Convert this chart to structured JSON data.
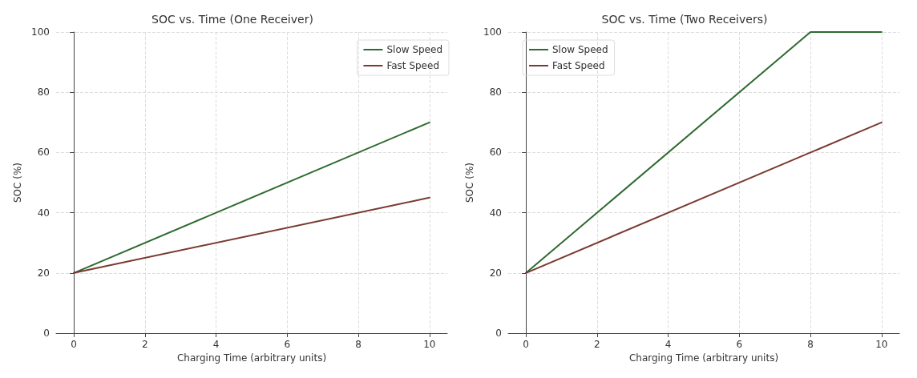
{
  "chart_data": [
    {
      "type": "line",
      "title": "SOC vs. Time (One Receiver)",
      "xlabel": "Charging Time (arbitrary units)",
      "ylabel": "SOC (%)",
      "x": [
        0,
        10
      ],
      "xlim": [
        -0.5,
        10.5
      ],
      "xticks": [
        0,
        2,
        4,
        6,
        8,
        10
      ],
      "ylim": [
        0,
        100
      ],
      "yticks": [
        0,
        20,
        40,
        60,
        80,
        100
      ],
      "grid": true,
      "legend": "top right",
      "marker": "none",
      "line_style": "solid",
      "series": [
        {
          "name": "Slow Speed",
          "color": "#2e6b30",
          "values": [
            20,
            70
          ]
        },
        {
          "name": "Fast Speed",
          "color": "#7a3a30",
          "values": [
            20,
            45
          ]
        }
      ]
    },
    {
      "type": "line",
      "title": "SOC vs. Time (Two Receivers)",
      "xlabel": "Charging Time (arbitrary units)",
      "ylabel": "SOC (%)",
      "x": [
        0,
        8,
        10
      ],
      "xlim": [
        -0.5,
        10.5
      ],
      "xticks": [
        0,
        2,
        4,
        6,
        8,
        10
      ],
      "ylim": [
        0,
        100
      ],
      "yticks": [
        0,
        20,
        40,
        60,
        80,
        100
      ],
      "grid": true,
      "legend": "top left",
      "marker": "none",
      "line_style": "solid",
      "series": [
        {
          "name": "Slow Speed",
          "color": "#2e6b30",
          "values": [
            20,
            100,
            100
          ]
        },
        {
          "name": "Fast Speed",
          "color": "#7a3a30",
          "values": [
            20,
            60,
            70
          ]
        }
      ]
    }
  ]
}
